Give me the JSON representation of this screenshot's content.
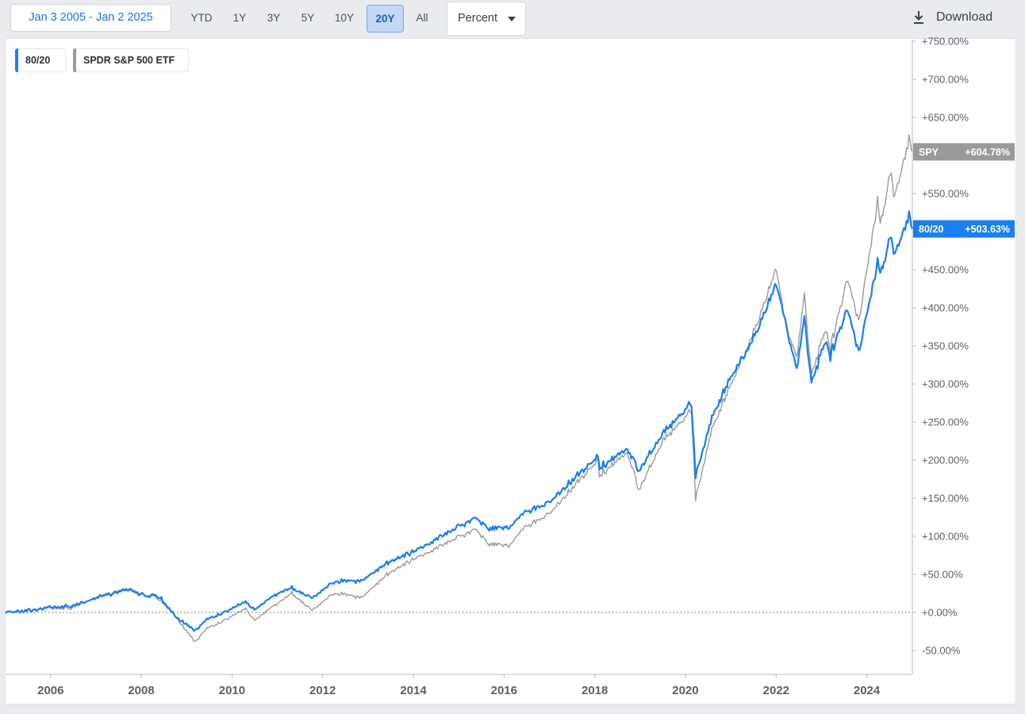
{
  "toolbar": {
    "date_range": "Jan 3 2005 - Jan 2 2025",
    "ranges": [
      {
        "label": "YTD",
        "active": false
      },
      {
        "label": "1Y",
        "active": false
      },
      {
        "label": "3Y",
        "active": false
      },
      {
        "label": "5Y",
        "active": false
      },
      {
        "label": "10Y",
        "active": false
      },
      {
        "label": "20Y",
        "active": true
      },
      {
        "label": "All",
        "active": false
      }
    ],
    "mode": "Percent",
    "download_label": "Download"
  },
  "legend": [
    {
      "label": "80/20",
      "color": "#1a7ff0"
    },
    {
      "label": "SPDR S&P 500 ETF",
      "color": "#9a9a9a"
    }
  ],
  "last_value_tags": [
    {
      "ticker": "SPY",
      "value": "+604.78%",
      "color": "#9a9a9a"
    },
    {
      "ticker": "80/20",
      "value": "+503.63%",
      "color": "#1a7ff0"
    }
  ],
  "chart_data": {
    "type": "line",
    "xlabel": "",
    "ylabel": "",
    "x_range": [
      "2005-01-03",
      "2025-01-02"
    ],
    "x_tick_labels": [
      "2006",
      "2008",
      "2010",
      "2012",
      "2014",
      "2016",
      "2018",
      "2020",
      "2022",
      "2024"
    ],
    "ylim": [
      -80,
      760
    ],
    "y_ticks": [
      750,
      700,
      650,
      600,
      550,
      500,
      450,
      400,
      350,
      300,
      250,
      200,
      150,
      100,
      50,
      0,
      -50
    ],
    "y_tick_labels": [
      "+750.00%",
      "+700.00%",
      "+650.00%",
      "+600.00%",
      "+550.00%",
      "+500.00%",
      "+450.00%",
      "+400.00%",
      "+350.00%",
      "+300.00%",
      "+250.00%",
      "+200.00%",
      "+150.00%",
      "+100.00%",
      "+50.00%",
      "+0.00%",
      "-50.00%"
    ],
    "zero_line": "dotted",
    "legend_position": "top-left",
    "series": [
      {
        "name": "SPY",
        "color": "#9a9a9a",
        "points": [
          [
            "2005-01-03",
            0
          ],
          [
            "2005-06-01",
            1
          ],
          [
            "2006-01-02",
            6
          ],
          [
            "2006-06-01",
            5
          ],
          [
            "2007-01-01",
            20
          ],
          [
            "2007-10-01",
            32
          ],
          [
            "2008-01-01",
            25
          ],
          [
            "2008-06-01",
            17
          ],
          [
            "2008-10-01",
            -5
          ],
          [
            "2009-03-09",
            -40
          ],
          [
            "2009-06-01",
            -22
          ],
          [
            "2010-01-01",
            -5
          ],
          [
            "2010-04-20",
            5
          ],
          [
            "2010-07-01",
            -10
          ],
          [
            "2011-01-01",
            12
          ],
          [
            "2011-04-29",
            26
          ],
          [
            "2011-10-03",
            2
          ],
          [
            "2012-04-01",
            25
          ],
          [
            "2012-11-15",
            20
          ],
          [
            "2013-06-01",
            50
          ],
          [
            "2014-01-01",
            70
          ],
          [
            "2015-05-21",
            110
          ],
          [
            "2015-08-25",
            90
          ],
          [
            "2016-02-11",
            88
          ],
          [
            "2016-06-01",
            110
          ],
          [
            "2017-01-01",
            130
          ],
          [
            "2018-01-26",
            200
          ],
          [
            "2018-02-08",
            180
          ],
          [
            "2018-09-20",
            210
          ],
          [
            "2018-12-24",
            160
          ],
          [
            "2019-07-01",
            225
          ],
          [
            "2020-02-19",
            265
          ],
          [
            "2020-03-23",
            150
          ],
          [
            "2020-08-01",
            240
          ],
          [
            "2021-01-01",
            300
          ],
          [
            "2021-06-01",
            355
          ],
          [
            "2022-01-03",
            450
          ],
          [
            "2022-03-08",
            385
          ],
          [
            "2022-06-16",
            335
          ],
          [
            "2022-08-16",
            420
          ],
          [
            "2022-10-12",
            310
          ],
          [
            "2023-02-02",
            375
          ],
          [
            "2023-03-13",
            345
          ],
          [
            "2023-07-31",
            440
          ],
          [
            "2023-10-27",
            380
          ],
          [
            "2024-03-28",
            540
          ],
          [
            "2024-04-19",
            510
          ],
          [
            "2024-07-16",
            580
          ],
          [
            "2024-08-05",
            545
          ],
          [
            "2024-12-06",
            625
          ],
          [
            "2025-01-02",
            604.78
          ]
        ]
      },
      {
        "name": "80/20",
        "color": "#1a7ff0",
        "points": [
          [
            "2005-01-03",
            0
          ],
          [
            "2005-06-01",
            2
          ],
          [
            "2006-01-02",
            7
          ],
          [
            "2006-06-01",
            8
          ],
          [
            "2007-01-01",
            19
          ],
          [
            "2007-10-01",
            30
          ],
          [
            "2008-01-01",
            24
          ],
          [
            "2008-06-01",
            20
          ],
          [
            "2008-10-01",
            -5
          ],
          [
            "2009-03-09",
            -25
          ],
          [
            "2009-06-01",
            -10
          ],
          [
            "2010-01-01",
            5
          ],
          [
            "2010-04-20",
            14
          ],
          [
            "2010-07-01",
            4
          ],
          [
            "2011-01-01",
            25
          ],
          [
            "2011-04-29",
            33
          ],
          [
            "2011-10-03",
            18
          ],
          [
            "2012-04-01",
            40
          ],
          [
            "2012-11-15",
            42
          ],
          [
            "2013-06-01",
            65
          ],
          [
            "2014-01-01",
            80
          ],
          [
            "2015-05-21",
            125
          ],
          [
            "2015-08-25",
            110
          ],
          [
            "2016-02-11",
            112
          ],
          [
            "2016-06-01",
            130
          ],
          [
            "2017-01-01",
            145
          ],
          [
            "2018-01-26",
            205
          ],
          [
            "2018-02-08",
            190
          ],
          [
            "2018-09-20",
            215
          ],
          [
            "2018-12-24",
            185
          ],
          [
            "2019-07-01",
            235
          ],
          [
            "2020-02-19",
            275
          ],
          [
            "2020-03-23",
            180
          ],
          [
            "2020-08-01",
            255
          ],
          [
            "2021-01-01",
            310
          ],
          [
            "2021-06-01",
            350
          ],
          [
            "2022-01-03",
            430
          ],
          [
            "2022-03-08",
            385
          ],
          [
            "2022-06-16",
            320
          ],
          [
            "2022-08-16",
            390
          ],
          [
            "2022-10-12",
            300
          ],
          [
            "2023-02-02",
            360
          ],
          [
            "2023-03-13",
            335
          ],
          [
            "2023-07-31",
            400
          ],
          [
            "2023-10-27",
            340
          ],
          [
            "2024-03-28",
            460
          ],
          [
            "2024-04-19",
            445
          ],
          [
            "2024-07-16",
            495
          ],
          [
            "2024-08-05",
            470
          ],
          [
            "2024-12-06",
            525
          ],
          [
            "2025-01-02",
            503.63
          ]
        ]
      }
    ]
  }
}
